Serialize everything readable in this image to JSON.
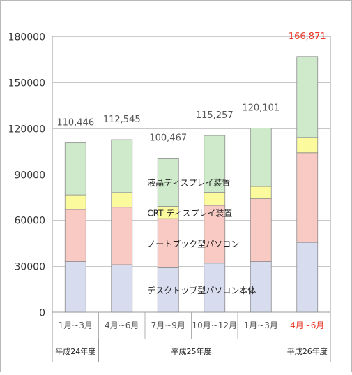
{
  "chart_data": {
    "type": "bar",
    "stacked": true,
    "ylim": [
      0,
      180000
    ],
    "yticks": [
      0,
      30000,
      60000,
      90000,
      120000,
      150000,
      180000
    ],
    "ytick_labels": [
      "0",
      "30000",
      "60000",
      "90000",
      "120000",
      "150000",
      "180000"
    ],
    "grid": true,
    "categories": [
      "1月~3月",
      "4月~6月",
      "7月~9月",
      "10月~12月",
      "1月~3月",
      "4月~6月"
    ],
    "category_colors": [
      "#555555",
      "#555555",
      "#555555",
      "#555555",
      "#555555",
      "#e8382a"
    ],
    "totals": [
      "110,446",
      "112,545",
      "100,467",
      "115,257",
      "120,101",
      "166,871"
    ],
    "total_colors": [
      "#555555",
      "#555555",
      "#555555",
      "#555555",
      "#555555",
      "#e8382a"
    ],
    "series": [
      {
        "name": "デスクトップ型パソコン本体",
        "color": "#d8dcef",
        "values": [
          33000,
          31000,
          29000,
          32000,
          33000,
          45500
        ]
      },
      {
        "name": "ノートブック型パソコン",
        "color": "#f9c9c3",
        "values": [
          34000,
          37500,
          32000,
          37700,
          41000,
          58500
        ]
      },
      {
        "name": "CRT ディスプレイ装置",
        "color": "#fbfb9e",
        "values": [
          9500,
          9500,
          8000,
          8400,
          8000,
          10000
        ]
      },
      {
        "name": "液晶ディスプレイ装置",
        "color": "#cfeacb",
        "values": [
          33946,
          34545,
          31467,
          37157,
          38101,
          52871
        ]
      }
    ],
    "series_label_bar": 2,
    "year_groups": [
      {
        "label": "平成24年度",
        "span": [
          0,
          0
        ]
      },
      {
        "label": "平成25年度",
        "span": [
          1,
          4
        ]
      },
      {
        "label": "平成26年度",
        "span": [
          5,
          5
        ]
      }
    ]
  }
}
